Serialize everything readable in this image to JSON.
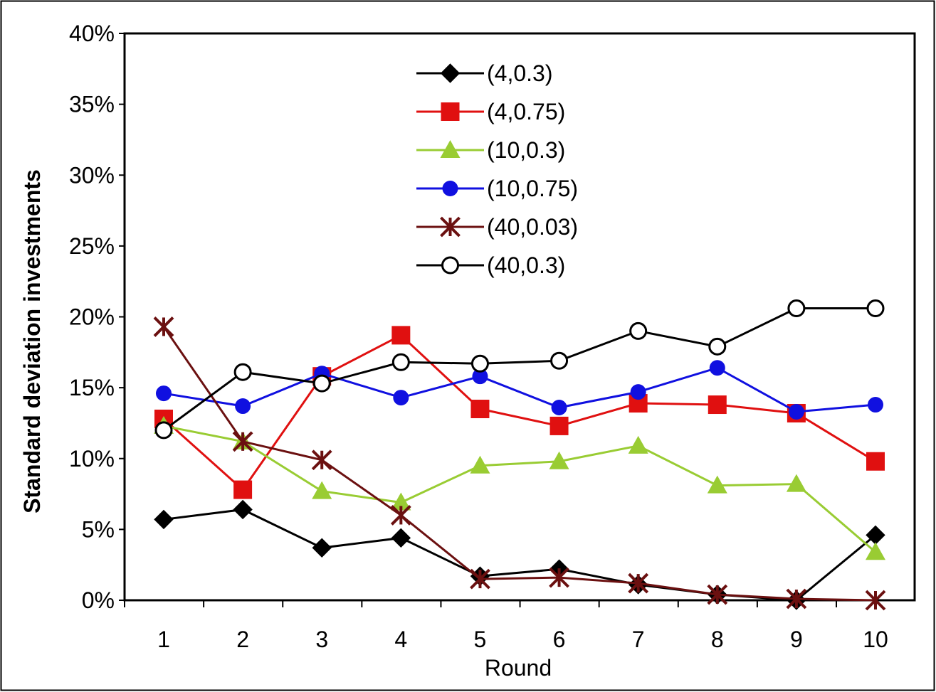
{
  "chart_data": {
    "type": "line",
    "title": "",
    "xlabel": "Round",
    "ylabel": "Standard deviation investments",
    "x": [
      1,
      2,
      3,
      4,
      5,
      6,
      7,
      8,
      9,
      10
    ],
    "x_tick_labels": [
      "1",
      "2",
      "3",
      "4",
      "5",
      "6",
      "7",
      "8",
      "9",
      "10"
    ],
    "ylim": [
      0,
      40
    ],
    "y_ticks": [
      0,
      5,
      10,
      15,
      20,
      25,
      30,
      35,
      40
    ],
    "y_tick_labels": [
      "0%",
      "5%",
      "10%",
      "15%",
      "20%",
      "25%",
      "30%",
      "35%",
      "40%"
    ],
    "grid": false,
    "legend_position": "top-center",
    "series": [
      {
        "name": "(4,0.3)",
        "color": "#000000",
        "marker": "diamond",
        "values": [
          5.7,
          6.4,
          3.7,
          4.4,
          1.7,
          2.2,
          1.1,
          0.4,
          0.0,
          4.6
        ]
      },
      {
        "name": "(4,0.75)",
        "color": "#e01010",
        "marker": "square",
        "values": [
          12.8,
          7.8,
          15.8,
          18.7,
          13.5,
          12.3,
          13.9,
          13.8,
          13.2,
          9.8
        ]
      },
      {
        "name": "(10,0.3)",
        "color": "#99cc33",
        "marker": "triangle",
        "values": [
          12.3,
          11.2,
          7.7,
          6.9,
          9.5,
          9.8,
          10.9,
          8.1,
          8.2,
          3.4
        ]
      },
      {
        "name": "(10,0.75)",
        "color": "#1010e0",
        "marker": "circle",
        "values": [
          14.6,
          13.7,
          16.0,
          14.3,
          15.8,
          13.6,
          14.7,
          16.4,
          13.3,
          13.8
        ]
      },
      {
        "name": "(40,0.03)",
        "color": "#6b1010",
        "marker": "star",
        "values": [
          19.3,
          11.2,
          9.9,
          6.0,
          1.5,
          1.6,
          1.2,
          0.4,
          0.1,
          0.0
        ]
      },
      {
        "name": "(40,0.3)",
        "color": "#000000",
        "marker": "open-circle",
        "values": [
          12.0,
          16.1,
          15.3,
          16.8,
          16.7,
          16.9,
          19.0,
          17.9,
          20.6,
          20.6
        ]
      }
    ]
  }
}
